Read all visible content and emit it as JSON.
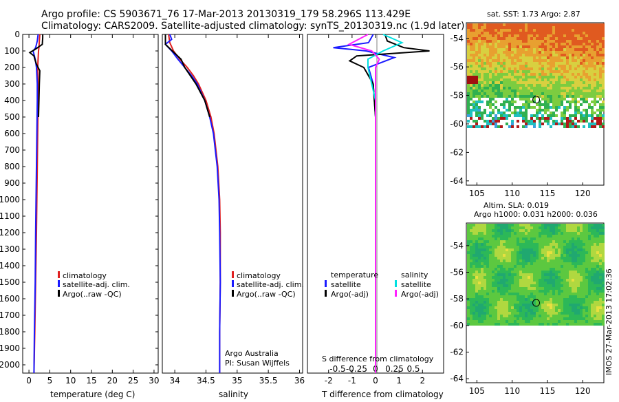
{
  "title_line1": "Argo profile: CS 5903671_76 17-Mar-2013 20130319_179 58.296S 113.429E",
  "title_line2": "Climatology: CARS2009. Satellite-adjusted climatology: synTS_20130319.nc (1.9d later)",
  "side_label": "IMOS 27-Mar-2013 17:02:36",
  "credit": {
    "line1": "Argo Australia",
    "line2": "PI: Susan Wijffels"
  },
  "colors": {
    "climatology": "#e02020",
    "satellite": "#1a1aff",
    "argo": "#000000",
    "sat_sal": "#00e0e0",
    "argo_sal": "#ff20ff"
  },
  "chart_data": [
    {
      "type": "line",
      "name": "temperature",
      "xlabel": "temperature (deg C)",
      "xlim": [
        -1.5,
        31
      ],
      "xticks": [
        "0",
        "5",
        "10",
        "15",
        "20",
        "25",
        "30"
      ],
      "ylim": [
        0,
        2050
      ],
      "yticks": [
        "0",
        "100",
        "200",
        "300",
        "400",
        "500",
        "600",
        "700",
        "800",
        "900",
        "1000",
        "1100",
        "1200",
        "1300",
        "1400",
        "1500",
        "1600",
        "1700",
        "1800",
        "1900",
        "2000"
      ],
      "legend": [
        "climatology",
        "satellite-adj. clim.",
        "Argo(..raw -QC)"
      ],
      "series": [
        {
          "name": "climatology",
          "depth": [
            0,
            40,
            80,
            100,
            150,
            200,
            300,
            400,
            600,
            800,
            1000,
            1200,
            1500,
            1800,
            2050
          ],
          "values": [
            2.6,
            2.5,
            2.4,
            2.3,
            2.2,
            2.1,
            2.2,
            2.2,
            2.1,
            2.0,
            1.9,
            1.8,
            1.6,
            1.4,
            1.2
          ]
        },
        {
          "name": "satellite-adj. clim.",
          "depth": [
            0,
            40,
            80,
            100,
            150,
            200,
            300,
            400,
            600,
            800,
            1000,
            1200,
            1500,
            1800,
            2050
          ],
          "values": [
            2.2,
            2.0,
            1.6,
            1.0,
            1.5,
            1.8,
            2.0,
            2.0,
            1.9,
            1.8,
            1.7,
            1.6,
            1.5,
            1.3,
            1.2
          ]
        },
        {
          "name": "Argo(..raw -QC)",
          "depth": [
            0,
            20,
            60,
            90,
            110,
            130,
            150,
            180,
            220,
            300,
            400,
            500
          ],
          "values": [
            3.3,
            3.3,
            3.2,
            1.5,
            0.2,
            1.2,
            1.4,
            1.8,
            2.6,
            2.5,
            2.4,
            2.3
          ]
        }
      ]
    },
    {
      "type": "line",
      "name": "salinity",
      "xlabel": "salinity",
      "xlim": [
        33.8,
        36.05
      ],
      "xticks": [
        "34",
        "34.5",
        "35",
        "35.5",
        "36"
      ],
      "ylim": [
        0,
        2050
      ],
      "legend": [
        "climatology",
        "satellite-adj. clim.",
        "Argo(..raw -QC)"
      ],
      "series": [
        {
          "name": "climatology",
          "depth": [
            0,
            50,
            100,
            150,
            200,
            250,
            300,
            400,
            500,
            600,
            800,
            1000,
            1200,
            1500,
            1800,
            2050
          ],
          "values": [
            33.9,
            33.92,
            33.98,
            34.08,
            34.2,
            34.3,
            34.38,
            34.5,
            34.58,
            34.63,
            34.69,
            34.72,
            34.73,
            34.73,
            34.72,
            34.72
          ]
        },
        {
          "name": "satellite-adj. clim.",
          "depth": [
            0,
            30,
            60,
            100,
            150,
            200,
            250,
            300,
            400,
            500,
            600,
            800,
            1000,
            1200,
            1500,
            1800,
            2050
          ],
          "values": [
            33.92,
            33.95,
            33.85,
            33.95,
            34.05,
            34.16,
            34.27,
            34.36,
            34.48,
            34.56,
            34.62,
            34.68,
            34.71,
            34.72,
            34.73,
            34.72,
            34.72
          ]
        },
        {
          "name": "Argo(..raw -QC)",
          "depth": [
            0,
            60,
            100,
            150,
            200,
            300,
            400,
            500
          ],
          "values": [
            33.85,
            33.85,
            33.96,
            34.1,
            34.16,
            34.34,
            34.48,
            34.56
          ]
        }
      ]
    },
    {
      "type": "line",
      "name": "differences",
      "xlabel": "T difference from climatology",
      "xlabel_top": "S difference from climatology",
      "xlim_T": [
        -2.9,
        2.9
      ],
      "xticks_T": [
        "-2",
        "-1",
        "0",
        "1",
        "2"
      ],
      "xticks_S": [
        "-0.5",
        "-0.25",
        "0",
        "0.25",
        "0.5"
      ],
      "ylim": [
        0,
        2050
      ],
      "legend_temperature": {
        "title": "temperature",
        "items": [
          "satellite",
          "Argo(-adj)"
        ]
      },
      "legend_salinity": {
        "title": "salinity",
        "items": [
          "satellite",
          "Argo(-adj)"
        ]
      },
      "series": [
        {
          "name": "temperature satellite",
          "depth": [
            0,
            50,
            80,
            100,
            140,
            200,
            300,
            500,
            800,
            1200,
            2050
          ],
          "values": [
            -0.1,
            -0.3,
            -1.8,
            -0.4,
            0.8,
            -0.3,
            -0.1,
            0,
            0,
            0,
            0
          ]
        },
        {
          "name": "temperature Argo(-adj)",
          "depth": [
            0,
            40,
            80,
            100,
            130,
            160,
            200,
            250,
            300,
            500,
            800,
            1200,
            1600,
            2050
          ],
          "values": [
            0.4,
            0.5,
            1.2,
            2.3,
            -0.8,
            -1.1,
            -0.5,
            -0.3,
            -0.1,
            0,
            0,
            0,
            0,
            0
          ]
        },
        {
          "name": "salinity satellite",
          "depth": [
            0,
            50,
            100,
            150,
            200,
            400,
            800,
            2050
          ],
          "values": [
            0.1,
            0.35,
            0.1,
            -0.1,
            -0.1,
            0,
            0,
            0
          ]
        },
        {
          "name": "salinity Argo(-adj)",
          "depth": [
            0,
            60,
            100,
            150,
            200,
            400,
            2050
          ],
          "values": [
            -0.1,
            -0.35,
            -0.05,
            0.05,
            0.0,
            0,
            0
          ]
        }
      ]
    },
    {
      "type": "heatmap",
      "name": "SST map",
      "title": "sat. SST: 1.73 Argo: 2.87",
      "xticks": [
        "105",
        "110",
        "115",
        "120"
      ],
      "yticks": [
        "-54",
        "-56",
        "-58",
        "-60",
        "-62",
        "-64"
      ],
      "xlim": [
        103.5,
        123
      ],
      "ylim": [
        -64.3,
        -52.9
      ],
      "marker": {
        "lon": 113.4,
        "lat": -58.3
      }
    },
    {
      "type": "heatmap",
      "name": "SLA map",
      "title": "Altim. SLA: 0.019",
      "title2": "Argo h1000: 0.031 h2000: 0.036",
      "xticks": [
        "105",
        "110",
        "115",
        "120"
      ],
      "yticks": [
        "-54",
        "-56",
        "-58",
        "-60",
        "-62",
        "-64"
      ],
      "xlim": [
        103.5,
        123
      ],
      "ylim": [
        -64.3,
        -52.3
      ],
      "marker": {
        "lon": 113.4,
        "lat": -58.3
      }
    }
  ]
}
